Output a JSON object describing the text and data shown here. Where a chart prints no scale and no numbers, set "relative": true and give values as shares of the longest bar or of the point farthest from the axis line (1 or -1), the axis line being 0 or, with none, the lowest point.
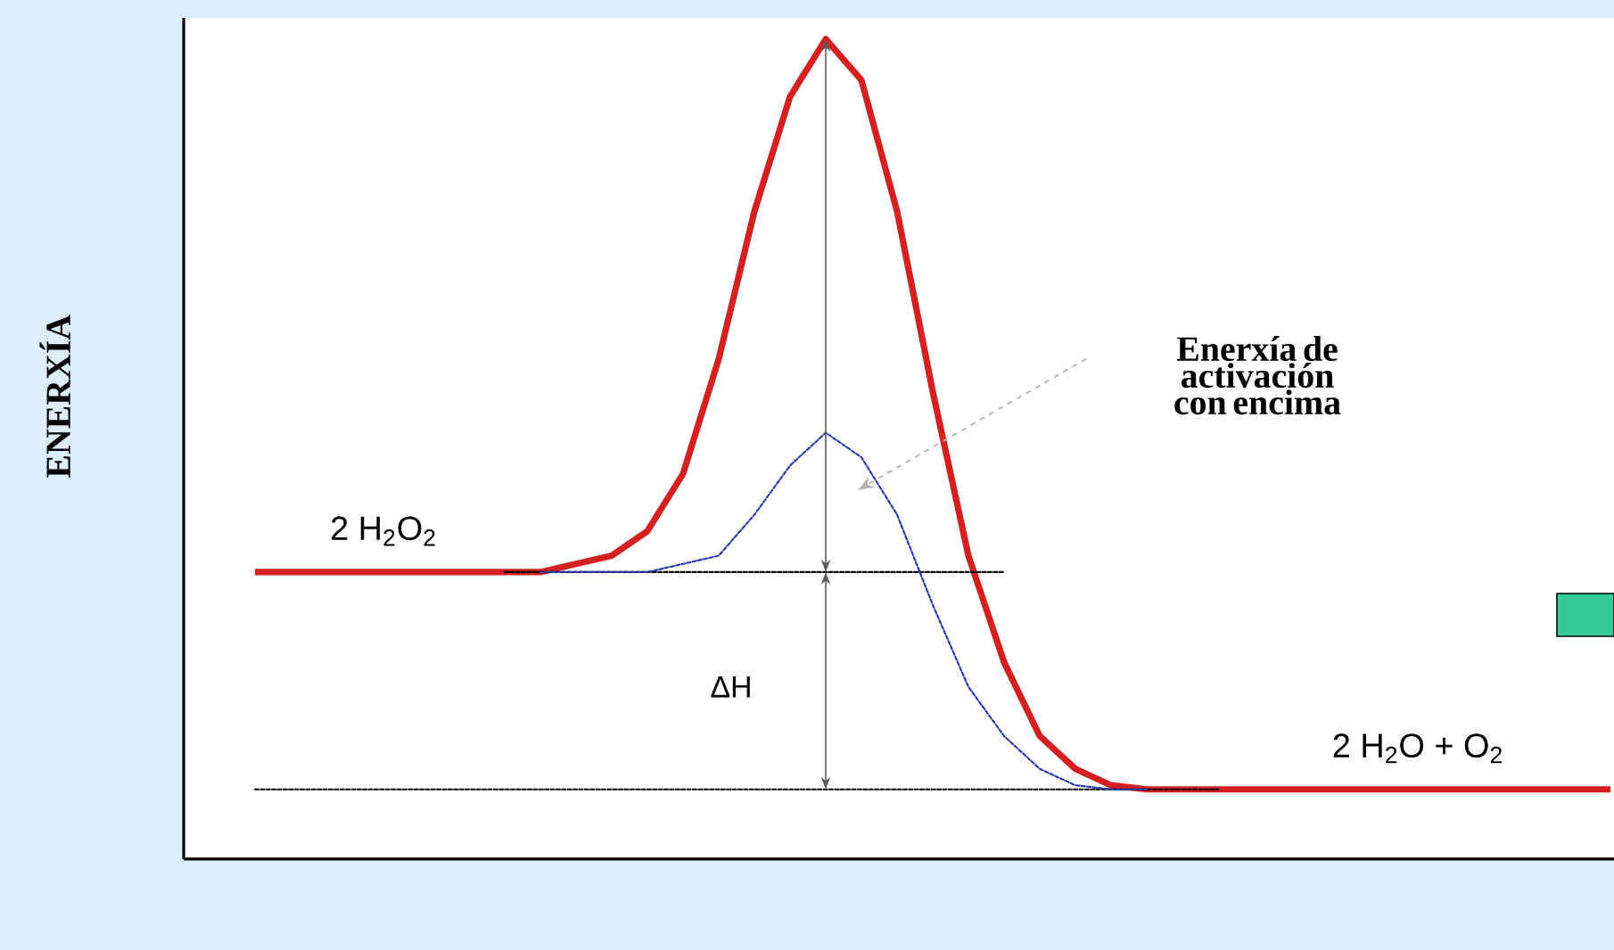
{
  "chart_data": {
    "type": "line",
    "relative": true,
    "ylabel": "ENERXÍA",
    "categories": [
      null,
      null,
      null,
      null,
      null,
      null,
      null,
      null,
      null,
      null,
      null,
      null,
      null,
      null,
      null,
      null,
      null,
      null,
      null,
      null,
      null,
      null,
      null,
      null,
      null,
      null,
      null,
      null,
      null,
      null,
      null,
      null,
      null,
      null,
      null,
      null,
      null,
      null,
      null
    ],
    "series": [
      {
        "color": "#d42020",
        "line_style": "solid",
        "values": [
          0.35,
          0.35,
          0.35,
          0.35,
          0.35,
          0.35,
          0.35,
          0.35,
          0.35,
          0.36,
          0.37,
          0.4,
          0.47,
          0.61,
          0.79,
          0.93,
          1,
          0.95,
          0.79,
          0.57,
          0.37,
          0.24,
          0.15,
          0.11,
          0.09,
          0.085,
          0.085,
          0.085,
          0.085,
          0.085,
          0.085,
          0.085,
          0.085,
          0.085,
          0.085,
          0.085,
          0.085,
          0.085,
          0.085
        ]
      },
      {
        "color": "#000000",
        "line_style": "dashed",
        "values": [
          null,
          null,
          null,
          null,
          null,
          null,
          null,
          0.35,
          0.35,
          0.35,
          0.35,
          0.35,
          0.35,
          0.35,
          0.35,
          0.35,
          0.35,
          0.35,
          0.35,
          0.35,
          0.35,
          0.35,
          null,
          null,
          null,
          null,
          null,
          null,
          null,
          null,
          null,
          null,
          null,
          null,
          null,
          null,
          null,
          null,
          null
        ]
      },
      {
        "color": "#000000",
        "line_style": "dashed",
        "values": [
          0.085,
          0.085,
          0.085,
          0.085,
          0.085,
          0.085,
          0.085,
          0.085,
          0.085,
          0.085,
          0.085,
          0.085,
          0.085,
          0.085,
          0.085,
          0.085,
          0.085,
          0.085,
          0.085,
          0.085,
          0.085,
          0.085,
          0.085,
          0.085,
          0.085,
          0.085,
          0.085,
          0.085,
          null,
          null,
          null,
          null,
          null,
          null,
          null,
          null,
          null,
          null,
          null
        ]
      },
      {
        "color": "#2a3aa8",
        "line_style": "dashed",
        "values": [
          null,
          null,
          null,
          null,
          null,
          null,
          null,
          null,
          0.35,
          0.35,
          0.35,
          0.35,
          0.36,
          0.37,
          0.42,
          0.48,
          0.52,
          0.49,
          0.42,
          0.31,
          0.21,
          0.15,
          0.11,
          0.09,
          0.085,
          0.085,
          null,
          null,
          null,
          null,
          null,
          null,
          null,
          null,
          null,
          null,
          null,
          null,
          null
        ]
      }
    ],
    "annotations": [
      "2 H$_{2}$O$_{2}$",
      "2 H$_{2}$O + O$_{2}$",
      "ΔH",
      "Enerxía de activación con encima"
    ]
  }
}
